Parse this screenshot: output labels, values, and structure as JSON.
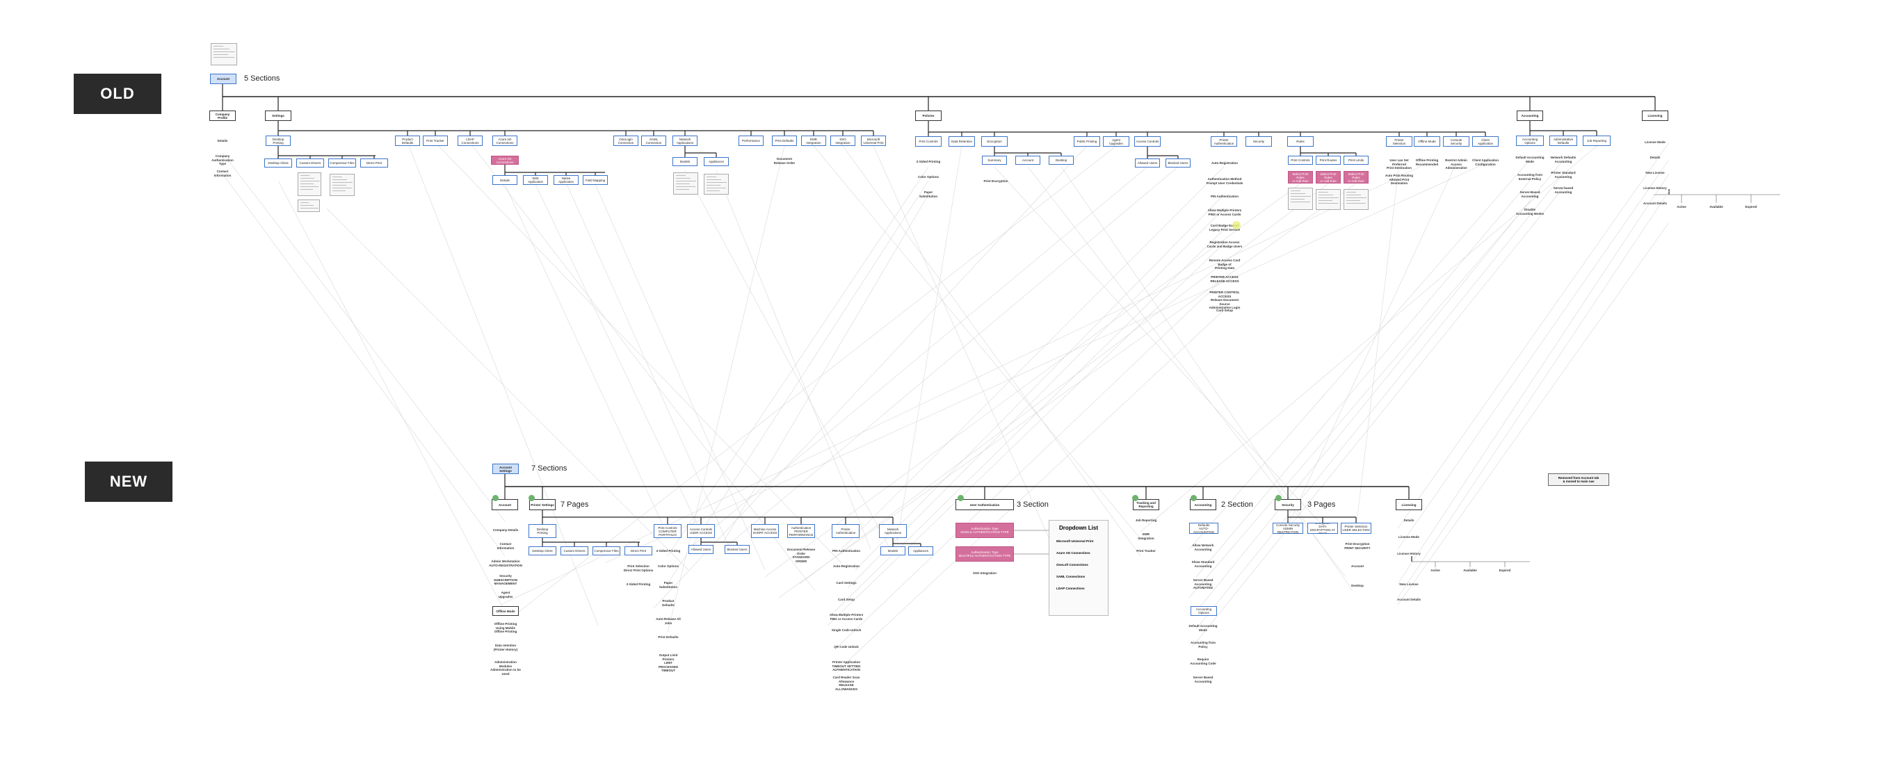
{
  "old": {
    "label": "OLD",
    "root": "Account",
    "sections_label": "5 Sections",
    "sections": [
      {
        "label": "Company Profile"
      },
      {
        "label": "Settings"
      },
      {
        "label": "Policies"
      },
      {
        "label": "Accounting"
      },
      {
        "label": "Licensing"
      }
    ],
    "company_items": [
      "Details",
      "Company\nAuthentication\nType",
      "Contact\nInformation"
    ],
    "settings_children": [
      "Desktop\nPrinting",
      "Product\nDefaults",
      "Print Tracker",
      "LDAP\nConnections",
      "Azure AD\nConnections",
      "OneLogin\nConnection",
      "SAML\nConnection",
      "Network\nApplications",
      "Performance",
      "Print Defaults",
      "EMR\nIntegration",
      "SSO Integration",
      "Microsoft\nUniversal Print"
    ],
    "desktop_children": [
      "Desktop Client",
      "Custom Drivers",
      "Compressor Files",
      "Direct Print"
    ],
    "azure_children": [
      "Details",
      "Web Application",
      "Native\nApplication",
      "Field Mapping"
    ],
    "network_children": [
      "Models",
      "Appliances"
    ],
    "performance_note": "Document\nRelease Order",
    "policies_children": [
      "Print Controls",
      "Data Retention",
      "Encryption",
      "Public Printing",
      "Agent\nUpgrades",
      "Access Controls",
      "Printer\nAuthentication",
      "Security",
      "Rules",
      "Printer\nSelection",
      "Offline Mode",
      "Console\nSecurity",
      "Client\nApplication"
    ],
    "print_controls_items": [
      "2-Sided Printing",
      "Color Options",
      "Paper\nSubstitution"
    ],
    "encryption_children": [
      "Summary",
      "Account",
      "Desktop"
    ],
    "encryption_note": "Print Encryption",
    "access_children": [
      "Allowed Users",
      "Blocked Users"
    ],
    "printer_auth_items": [
      "Auto-Registration",
      "Authentication Method\nPrompt User Credentials",
      "PIN Authentication",
      "Allow Multiple Printers\nPINS or Access Cards",
      "Card Badge Export\nLegacy Print Service",
      "Registration Access\nCards and Badge Users",
      "Remote Access Card Badge of\nPrinting Data",
      "PRINTER ACCESS\nRELEASE ACCESS",
      "PRINTER CONTROL ACCESS\nRelease Document Source\nAdministrative Login",
      "Card Setup"
    ],
    "rules_children": [
      "Print Controls",
      "Print Routes",
      "Print Limits"
    ],
    "rules_pink": "Select Print Rules\nor Add Rule",
    "selection_notes": [
      "User can Set Preferred\nPrint Destination",
      "Auto Print Routing\nAllowed Print Destination"
    ],
    "offline_note": "Offline Printing\nRecommended",
    "console_note": "Restrict Admin Access\nAdministrative",
    "client_note": "Client Application\nConfiguration",
    "accounting_children": [
      "Accounting\nOptions",
      "Administrative\nDefaults",
      "Job Reporting"
    ],
    "accounting_items": [
      "Default Accounting\nMode",
      "Accounting from\nExternal Policy",
      "Server-Based\nAccounting",
      "Disable\nAccounting Modes"
    ],
    "admin_items": [
      "Network Defaults\nAccounting",
      "Printer Standard\nAccounting",
      "Server-based\nAccounting"
    ],
    "licensing_items": [
      "License Mode",
      "Details",
      "New License",
      "License History",
      "Account Details"
    ],
    "license_history_children": [
      "Active",
      "Available",
      "Expired"
    ]
  },
  "new": {
    "label": "NEW",
    "root": "Account\nSettings",
    "sections_label": "7 Sections",
    "sections": [
      {
        "label": "Account"
      },
      {
        "label": "Printer Settings"
      },
      {
        "label": "User Authentication"
      },
      {
        "label": "Tracking and\nReporting"
      },
      {
        "label": "Accounting"
      },
      {
        "label": "Security"
      },
      {
        "label": "Licensing"
      }
    ],
    "printer_pages_label": "7 Pages",
    "auth_section_label": "3 Section",
    "accounting_section_label": "2 Section",
    "security_pages_label": "3 Pages",
    "account_items": [
      "Company Details",
      "Contact\nInformation",
      "Admin Workstation\nAUTO-REGISTRATION",
      "Security\nSUBSCRIPTION\nMANAGEMENT",
      "Agent\nUpgrades",
      "Offline Mode",
      "Offline Printing\nUsing Mobile\nOffline Printing",
      "Data retention\n(Printer History)",
      "Administration Modules\nAdministration to be\nUsed"
    ],
    "printer_children": [
      "Desktop\nPrinting",
      "Print Controls\nCOMPUTER\nPORTFOLIO",
      "Access Controls\nUSER ACCESS",
      "Machine Access\nSHORT ACCESS",
      "Authentication\nPRINTER\nPERFORMANCE",
      "Printer Authentication",
      "Network\nApplications"
    ],
    "desktop_children": [
      "Desktop Client",
      "Custom Drivers",
      "Compressor Files",
      "Direct Print"
    ],
    "direct_note": "Print Selection\nDirect Print Options",
    "print_controls_items": [
      "2-Sided Printing",
      "Color Options",
      "Paper\nSubstitution",
      "Product\nDefaults",
      "Auto-Release All\nJobs",
      "Print Defaults",
      "Output Limit\nPrinters\nLIMIT\nPROCESSED\nTIMEOUT"
    ],
    "access_children": [
      "Allowed Users",
      "Blocked Users"
    ],
    "doc_release": "Document Release\nOrder\nSTANDARD\nORDER",
    "printer_auth_items": [
      "PIN Authentication",
      "Auto-Registration",
      "Card Settings",
      "Card Setup",
      "Allow Multiple Printers\nPINs or Access Cards",
      "Single Code Unlock",
      "QR Code Unlock",
      "Printer Application\nTIMEOUT SETTING\nAUTHENTICATION",
      "Card Reader Scan Allowance\nRELEASE ALLOWANCES"
    ],
    "network_children": [
      "Models",
      "Appliances"
    ],
    "auth_pink": [
      "Authentication Type\nSINGLE AUTHENTICATION TYPE",
      "Authentication Type\nMULTIPLE AUTHENTICATION TYPE"
    ],
    "sso_label": "SSO Integration",
    "dropdown": {
      "title": "Dropdown List",
      "items": [
        "Microsoft Universal Print",
        "Azure AD Connections",
        "OneLoft Connections",
        "SAML Connections",
        "LDAP Connections"
      ]
    },
    "tracking_items": [
      "Job Reporting",
      "EMR\nIntegration",
      "Print Tracker"
    ],
    "accounting_children": [
      "Administrative Defaults\nAUTO-ACCOUNTING MODE"
    ],
    "accounting_items_top": [
      "Allow Network\nAccounting",
      "Show Standard\nAccounting",
      "Server Based\nAccounting\nAUTOMATED"
    ],
    "accounting_options": "Accounting Options",
    "accounting_items_bottom": [
      "Default Accounting\nMode",
      "Accounting from\nPolicy",
      "Require\nAccounting Code",
      "Server Based\nAccounting"
    ],
    "security_children": [
      "Console Security\nADMIN RESTRICTION",
      "Encryption\nDATA ENCRYPTION AT REST",
      "Printer Selection\nUSER SELECTION"
    ],
    "security_items": [
      "Print Encryption\nPRINT SECURITY",
      "Account",
      "Desktop"
    ],
    "licensing_items": [
      "Details",
      "License Mode",
      "License History",
      "New License",
      "Account Details"
    ],
    "license_history_children": [
      "Active",
      "Available",
      "Expired"
    ],
    "removed_note": "Removed from Account tab\n& moved to main nav"
  },
  "colors": {
    "accent": "#3c74c9",
    "pink": "#d46f9b",
    "era_bg": "#2b2b2b",
    "badge": "#6db36d"
  }
}
